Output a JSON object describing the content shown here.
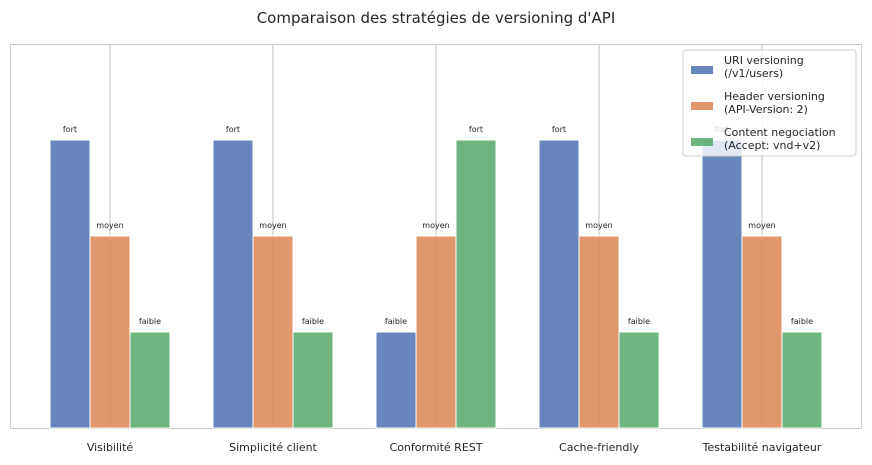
{
  "chart_data": {
    "type": "bar",
    "title": "Comparaison des stratégies de versioning d'API",
    "xlabel": "",
    "ylabel": "",
    "categories": [
      "Visibilité",
      "Simplicité client",
      "Conformité REST",
      "Cache-friendly",
      "Testabilité navigateur"
    ],
    "ylim": [
      0,
      4
    ],
    "grid": "vertical gridlines on",
    "legend_position": "top-right",
    "level_names": {
      "1": "faible",
      "2": "moyen",
      "3": "fort"
    },
    "series": [
      {
        "name": "URI versioning\n(/v1/users)",
        "color": "#4c72b0",
        "values": [
          3,
          3,
          1,
          3,
          3
        ],
        "labels": [
          "fort",
          "fort",
          "faible",
          "fort",
          "fort"
        ]
      },
      {
        "name": "Header versioning\n(API-Version: 2)",
        "color": "#dd8452",
        "values": [
          2,
          2,
          2,
          2,
          2
        ],
        "labels": [
          "moyen",
          "moyen",
          "moyen",
          "moyen",
          "moyen"
        ]
      },
      {
        "name": "Content negociation\n(Accept: vnd+v2)",
        "color": "#55a868",
        "values": [
          1,
          1,
          3,
          1,
          1
        ],
        "labels": [
          "faible",
          "faible",
          "fort",
          "faible",
          "faible"
        ]
      }
    ]
  }
}
